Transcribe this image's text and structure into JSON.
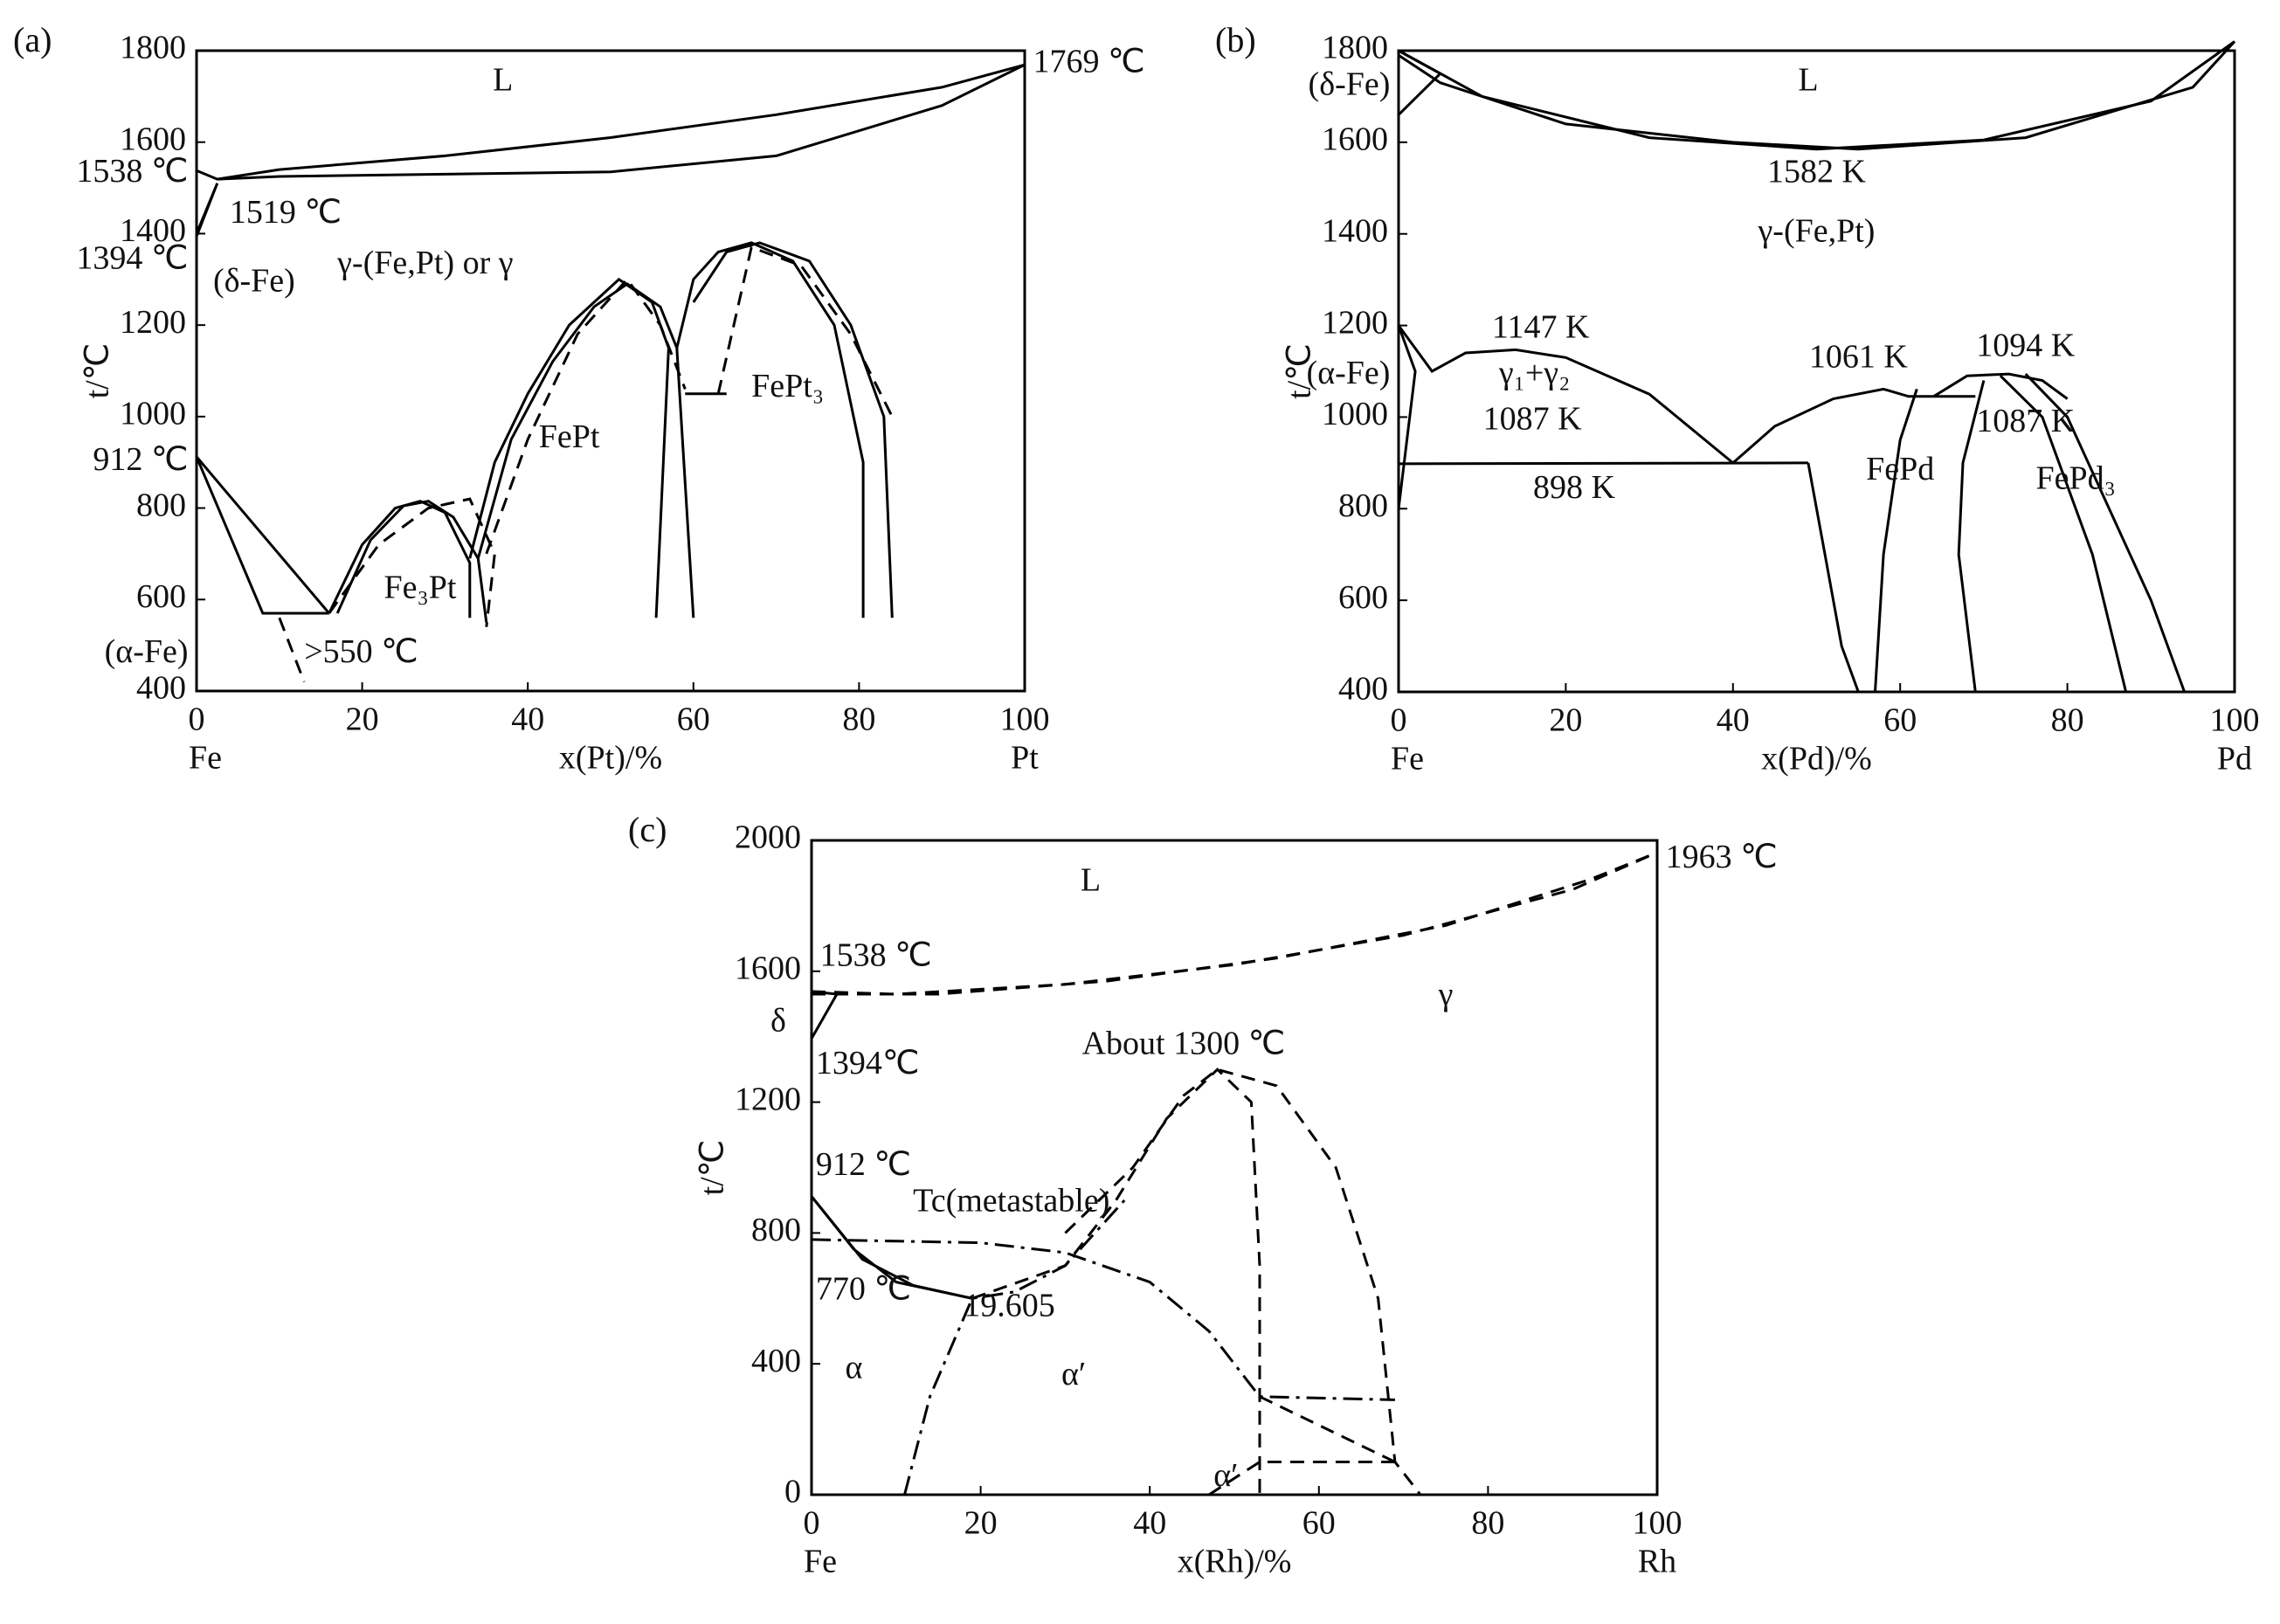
{
  "chart_data": [
    {
      "type": "line",
      "panel": "(a)",
      "xlabel": "x(Pt)/%",
      "ylabel": "t/℃",
      "left_label": "Fe",
      "right_label": "Pt",
      "xlim": [
        0,
        100
      ],
      "ylim": [
        400,
        1800
      ],
      "xticks": [
        0,
        20,
        40,
        60,
        80,
        100
      ],
      "yticks": [
        400,
        600,
        800,
        1000,
        1200,
        1400,
        1600,
        1800
      ],
      "annotations": [
        "L",
        "1769 ℃",
        "1538 ℃",
        "1519 ℃",
        "1394 ℃",
        "(δ-Fe)",
        "γ-(Fe,Pt) or γ",
        "912 ℃",
        "FePt",
        "FePt₃",
        "Fe₃Pt",
        "(α-Fe)",
        ">550 ℃"
      ],
      "series": [
        {
          "color": "#000000",
          "style": "solid",
          "x": [
            0,
            2.5,
            10,
            30,
            50,
            70,
            90,
            100
          ],
          "values": [
            1538,
            1519,
            1540,
            1570,
            1610,
            1660,
            1720,
            1769
          ]
        },
        {
          "color": "#000000",
          "style": "solid",
          "x": [
            2.5,
            10,
            30,
            50,
            70,
            90,
            100
          ],
          "values": [
            1519,
            1525,
            1530,
            1535,
            1570,
            1680,
            1769
          ]
        },
        {
          "color": "#000000",
          "style": "solid",
          "x": [
            0,
            2.5,
            0
          ],
          "values": [
            1394,
            1510,
            1400
          ]
        },
        {
          "color": "#000000",
          "style": "solid",
          "x": [
            0,
            16
          ],
          "values": [
            912,
            570
          ]
        },
        {
          "color": "#000000",
          "style": "solid",
          "x": [
            0,
            8,
            16
          ],
          "values": [
            912,
            570,
            570
          ]
        },
        {
          "color": "#000000",
          "style": "dashed",
          "x": [
            10,
            13
          ],
          "values": [
            560,
            420
          ]
        },
        {
          "color": "#000000",
          "style": "solid",
          "x": [
            16,
            20,
            24,
            27,
            30,
            33,
            33
          ],
          "values": [
            570,
            720,
            800,
            815,
            790,
            680,
            560
          ]
        },
        {
          "color": "#000000",
          "style": "solid",
          "x": [
            17,
            21,
            25,
            28,
            31,
            34,
            35
          ],
          "values": [
            570,
            730,
            805,
            815,
            780,
            690,
            550
          ]
        },
        {
          "color": "#000000",
          "style": "dashed",
          "x": [
            16,
            22,
            28,
            33,
            36,
            35
          ],
          "values": [
            570,
            720,
            800,
            820,
            700,
            540
          ]
        },
        {
          "color": "#000000",
          "style": "solid",
          "x": [
            33,
            36,
            40,
            45,
            51,
            55,
            57,
            55.5
          ],
          "values": [
            690,
            900,
            1050,
            1200,
            1300,
            1250,
            1150,
            560
          ]
        },
        {
          "color": "#000000",
          "style": "solid",
          "x": [
            34,
            38,
            43,
            48,
            52,
            56,
            58,
            60
          ],
          "values": [
            690,
            950,
            1120,
            1240,
            1290,
            1240,
            1150,
            560
          ]
        },
        {
          "color": "#000000",
          "style": "dashed",
          "x": [
            35,
            40,
            46,
            52,
            56,
            59
          ],
          "values": [
            700,
            950,
            1180,
            1300,
            1200,
            1060
          ]
        },
        {
          "color": "#000000",
          "style": "solid",
          "x": [
            58,
            60,
            63,
            67,
            72,
            77,
            80.5,
            80.5
          ],
          "values": [
            1150,
            1300,
            1360,
            1380,
            1340,
            1200,
            900,
            560
          ]
        },
        {
          "color": "#000000",
          "style": "solid",
          "x": [
            60,
            64,
            68,
            74,
            79,
            83,
            84
          ],
          "values": [
            1250,
            1360,
            1380,
            1340,
            1200,
            1000,
            560
          ]
        },
        {
          "color": "#000000",
          "style": "dashed",
          "x": [
            63,
            67,
            73,
            79,
            84
          ],
          "values": [
            1050,
            1370,
            1330,
            1180,
            1000
          ]
        },
        {
          "color": "#000000",
          "style": "solid",
          "x": [
            59,
            64
          ],
          "values": [
            1050,
            1050
          ]
        }
      ]
    },
    {
      "type": "line",
      "panel": "(b)",
      "xlabel": "x(Pd)/%",
      "ylabel": "t/℃",
      "left_label": "Fe",
      "right_label": "Pd",
      "xlim": [
        0,
        100
      ],
      "ylim": [
        400,
        1800
      ],
      "xticks": [
        0,
        20,
        40,
        60,
        80,
        100
      ],
      "yticks": [
        400,
        600,
        800,
        1000,
        1200,
        1400,
        1600,
        1800
      ],
      "annotations": [
        "L",
        "(δ-Fe)",
        "1582 K",
        "γ-(Fe,Pt)",
        "1147 K",
        "(α-Fe)",
        "γ₁+γ₂",
        "1087 K",
        "1061 K",
        "1094 K",
        "1087 K",
        "898 K",
        "FePd",
        "FePd₃"
      ],
      "series": [
        {
          "color": "#000000",
          "style": "solid",
          "x": [
            0,
            10,
            30,
            50,
            70,
            90,
            100
          ],
          "values": [
            1800,
            1700,
            1610,
            1585,
            1605,
            1690,
            1820
          ]
        },
        {
          "color": "#000000",
          "style": "solid",
          "x": [
            0,
            5,
            20,
            40,
            55,
            75,
            95,
            100
          ],
          "values": [
            1790,
            1730,
            1640,
            1600,
            1585,
            1610,
            1720,
            1820
          ]
        },
        {
          "color": "#000000",
          "style": "solid",
          "x": [
            0,
            5,
            0
          ],
          "values": [
            1660,
            1750,
            1800
          ]
        },
        {
          "color": "#000000",
          "style": "solid",
          "x": [
            0,
            2,
            0
          ],
          "values": [
            1200,
            1100,
            800
          ]
        },
        {
          "color": "#000000",
          "style": "solid",
          "x": [
            0,
            4,
            8,
            14,
            20,
            30,
            40
          ],
          "values": [
            1200,
            1100,
            1140,
            1147,
            1130,
            1050,
            900
          ]
        },
        {
          "color": "#000000",
          "style": "solid",
          "x": [
            0,
            49
          ],
          "values": [
            898,
            900
          ]
        },
        {
          "color": "#000000",
          "style": "solid",
          "x": [
            40,
            45,
            52,
            58,
            61,
            69
          ],
          "values": [
            900,
            980,
            1040,
            1061,
            1045,
            1045
          ]
        },
        {
          "color": "#000000",
          "style": "solid",
          "x": [
            49,
            51,
            53,
            55
          ],
          "values": [
            900,
            700,
            500,
            400
          ]
        },
        {
          "color": "#000000",
          "style": "solid",
          "x": [
            57,
            58,
            60,
            62
          ],
          "values": [
            400,
            700,
            950,
            1061
          ]
        },
        {
          "color": "#000000",
          "style": "solid",
          "x": [
            64,
            68,
            73,
            77,
            80
          ],
          "values": [
            1045,
            1090,
            1094,
            1080,
            1040
          ]
        },
        {
          "color": "#000000",
          "style": "solid",
          "x": [
            70,
            67.5,
            67,
            69
          ],
          "values": [
            1080,
            900,
            700,
            400
          ]
        },
        {
          "color": "#000000",
          "style": "solid",
          "x": [
            75,
            80,
            85,
            90,
            94
          ],
          "values": [
            1094,
            1000,
            800,
            600,
            400
          ]
        },
        {
          "color": "#000000",
          "style": "solid",
          "x": [
            72,
            77,
            83,
            87
          ],
          "values": [
            1090,
            1000,
            700,
            400
          ]
        }
      ]
    },
    {
      "type": "line",
      "panel": "(c)",
      "xlabel": "x(Rh)/%",
      "ylabel": "t/℃",
      "left_label": "Fe",
      "right_label": "Rh",
      "xlim": [
        0,
        100
      ],
      "ylim": [
        0,
        2000
      ],
      "xticks": [
        0,
        20,
        40,
        60,
        80,
        100
      ],
      "yticks": [
        0,
        400,
        800,
        1200,
        1600,
        2000
      ],
      "annotations": [
        "L",
        "1963 ℃",
        "1538 ℃",
        "δ",
        "1394℃",
        "About 1300 ℃",
        "γ",
        "912 ℃",
        "Tc(metastable)",
        "770 ℃",
        "19.605",
        "α",
        "α′",
        "α′"
      ],
      "series": [
        {
          "color": "#000000",
          "style": "dashed",
          "x": [
            0,
            10,
            30,
            50,
            70,
            90,
            100
          ],
          "values": [
            1538,
            1530,
            1560,
            1620,
            1710,
            1850,
            1963
          ]
        },
        {
          "color": "#000000",
          "style": "dashed",
          "x": [
            0,
            15,
            35,
            55,
            75,
            92,
            100
          ],
          "values": [
            1530,
            1530,
            1570,
            1640,
            1740,
            1880,
            1963
          ]
        },
        {
          "color": "#000000",
          "style": "solid",
          "x": [
            0,
            3,
            0
          ],
          "values": [
            1394,
            1530,
            1538
          ]
        },
        {
          "color": "#000000",
          "style": "solid",
          "x": [
            0,
            5,
            10,
            19
          ],
          "values": [
            912,
            750,
            650,
            600
          ]
        },
        {
          "color": "#000000",
          "style": "solid",
          "x": [
            0,
            6,
            12,
            19
          ],
          "values": [
            912,
            720,
            640,
            600
          ]
        },
        {
          "color": "#000000",
          "style": "dashdot",
          "x": [
            0,
            20,
            30,
            40,
            47,
            53,
            69
          ],
          "values": [
            780,
            770,
            740,
            650,
            500,
            300,
            290
          ]
        },
        {
          "color": "#000000",
          "style": "dashdot",
          "x": [
            11,
            14,
            19,
            24,
            30,
            37
          ],
          "values": [
            0,
            300,
            600,
            620,
            700,
            900
          ]
        },
        {
          "color": "#000000",
          "style": "dashed",
          "x": [
            19,
            30,
            36,
            42,
            48,
            52,
            53,
            53
          ],
          "values": [
            600,
            700,
            900,
            1150,
            1300,
            1200,
            700,
            0
          ]
        },
        {
          "color": "#000000",
          "style": "dashed",
          "x": [
            30,
            38,
            44,
            48,
            55,
            62,
            67,
            69,
            72
          ],
          "values": [
            800,
            1000,
            1220,
            1300,
            1250,
            1000,
            600,
            100,
            0
          ]
        },
        {
          "color": "#000000",
          "style": "dashed",
          "x": [
            47,
            53,
            55,
            69
          ],
          "values": [
            0,
            100,
            100,
            100
          ]
        },
        {
          "color": "#000000",
          "style": "dashed",
          "x": [
            53,
            69
          ],
          "values": [
            300,
            100
          ]
        }
      ]
    }
  ]
}
